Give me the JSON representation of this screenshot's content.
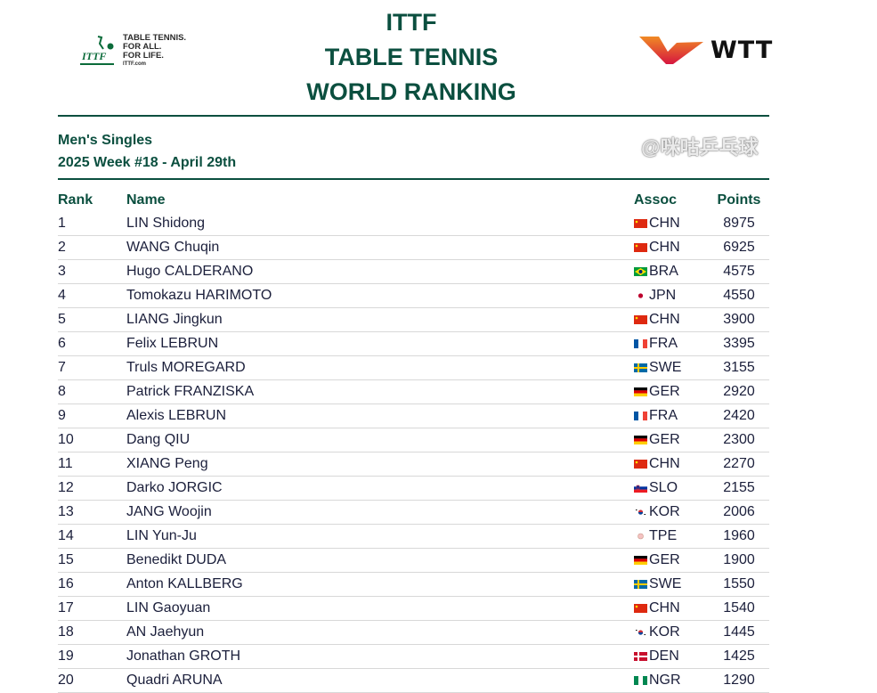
{
  "header": {
    "title_lines": [
      "ITTF",
      "TABLE TENNIS",
      "WORLD RANKING"
    ],
    "ittf_logo": {
      "lines": [
        "TABLE TENNIS.",
        "FOR ALL.",
        "FOR LIFE."
      ],
      "site": "ITTF.com",
      "mark": "ITTF"
    },
    "wtt_logo": {
      "text": "WTT"
    }
  },
  "subtitle": {
    "event": "Men's Singles",
    "week": "2025 Week #18 - April 29th"
  },
  "table": {
    "columns": [
      "Rank",
      "Name",
      "Assoc",
      "Points"
    ],
    "rows": [
      {
        "rank": "1",
        "name": "LIN Shidong",
        "assoc": "CHN",
        "points": "8975"
      },
      {
        "rank": "2",
        "name": "WANG Chuqin",
        "assoc": "CHN",
        "points": "6925"
      },
      {
        "rank": "3",
        "name": "Hugo CALDERANO",
        "assoc": "BRA",
        "points": "4575"
      },
      {
        "rank": "4",
        "name": "Tomokazu HARIMOTO",
        "assoc": "JPN",
        "points": "4550"
      },
      {
        "rank": "5",
        "name": "LIANG Jingkun",
        "assoc": "CHN",
        "points": "3900"
      },
      {
        "rank": "6",
        "name": "Felix LEBRUN",
        "assoc": "FRA",
        "points": "3395"
      },
      {
        "rank": "7",
        "name": "Truls MOREGARD",
        "assoc": "SWE",
        "points": "3155"
      },
      {
        "rank": "8",
        "name": "Patrick FRANZISKA",
        "assoc": "GER",
        "points": "2920"
      },
      {
        "rank": "9",
        "name": "Alexis LEBRUN",
        "assoc": "FRA",
        "points": "2420"
      },
      {
        "rank": "10",
        "name": "Dang QIU",
        "assoc": "GER",
        "points": "2300"
      },
      {
        "rank": "11",
        "name": "XIANG Peng",
        "assoc": "CHN",
        "points": "2270"
      },
      {
        "rank": "12",
        "name": "Darko JORGIC",
        "assoc": "SLO",
        "points": "2155"
      },
      {
        "rank": "13",
        "name": "JANG Woojin",
        "assoc": "KOR",
        "points": "2006"
      },
      {
        "rank": "14",
        "name": "LIN Yun-Ju",
        "assoc": "TPE",
        "points": "1960"
      },
      {
        "rank": "15",
        "name": "Benedikt DUDA",
        "assoc": "GER",
        "points": "1900"
      },
      {
        "rank": "16",
        "name": "Anton KALLBERG",
        "assoc": "SWE",
        "points": "1550"
      },
      {
        "rank": "17",
        "name": "LIN Gaoyuan",
        "assoc": "CHN",
        "points": "1540"
      },
      {
        "rank": "18",
        "name": "AN Jaehyun",
        "assoc": "KOR",
        "points": "1445"
      },
      {
        "rank": "19",
        "name": "Jonathan GROTH",
        "assoc": "DEN",
        "points": "1425"
      },
      {
        "rank": "20",
        "name": "Quadri ARUNA",
        "assoc": "NGR",
        "points": "1290"
      }
    ]
  },
  "colors": {
    "accent": "#0b4f3f",
    "text": "#1b1f3b"
  },
  "watermark": "@咪咕乒乓球"
}
